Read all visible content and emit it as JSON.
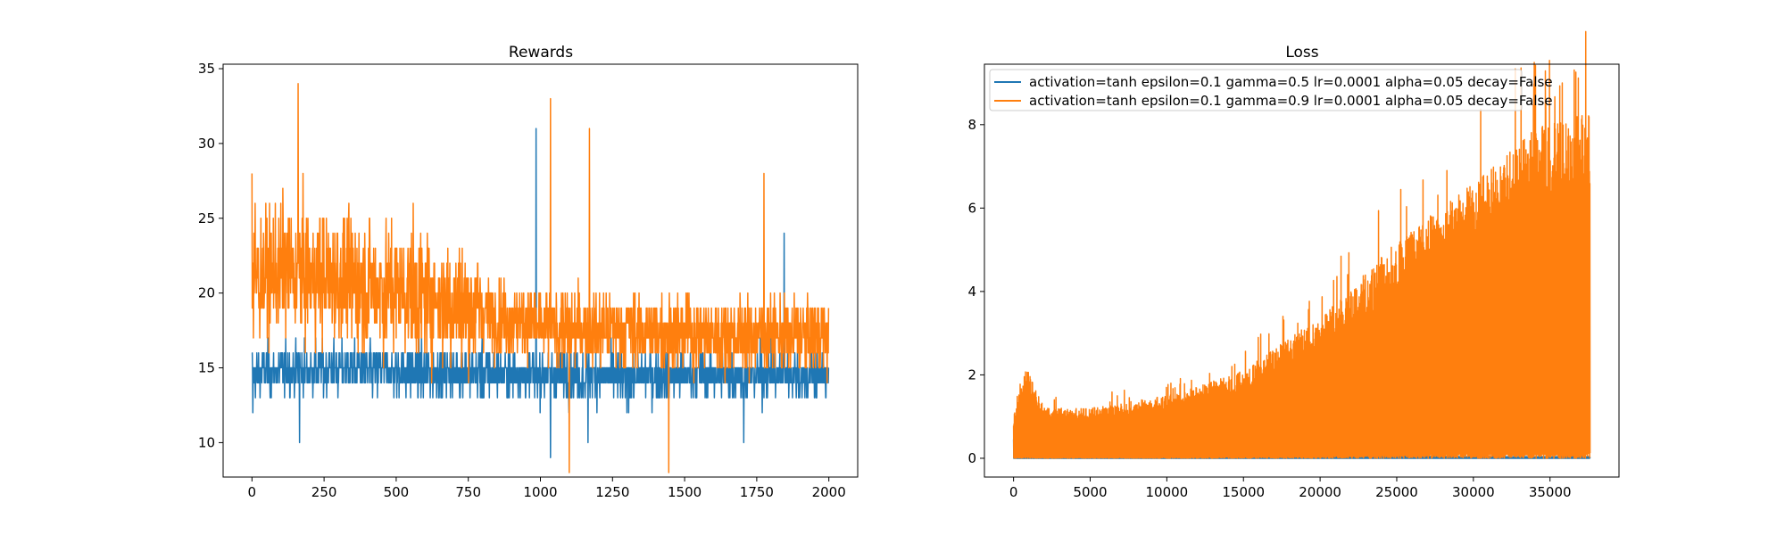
{
  "chart_data": [
    {
      "type": "line",
      "title": "Rewards",
      "xlabel": "",
      "ylabel": "",
      "xlim": [
        -100,
        2100
      ],
      "ylim": [
        7.7,
        35.3
      ],
      "xticks": [
        0,
        250,
        500,
        750,
        1000,
        1250,
        1500,
        1750,
        2000
      ],
      "yticks": [
        10,
        15,
        20,
        25,
        30,
        35
      ],
      "grid": false,
      "legend": "none",
      "series": [
        {
          "color": "#1f77b4",
          "points": 2000,
          "baseline": [
            [
              0,
              14.6
            ],
            [
              100,
              14.8
            ],
            [
              250,
              15.0
            ],
            [
              500,
              14.8
            ],
            [
              750,
              14.7
            ],
            [
              1000,
              14.5
            ],
            [
              1250,
              14.4
            ],
            [
              1500,
              14.5
            ],
            [
              1750,
              14.5
            ],
            [
              2000,
              14.6
            ]
          ],
          "range": [
            10,
            31
          ],
          "spikes": [
            [
              0,
              16
            ],
            [
              3,
              12
            ],
            [
              165,
              10
            ],
            [
              985,
              31
            ],
            [
              1035,
              9
            ],
            [
              1165,
              10
            ],
            [
              1705,
              10
            ],
            [
              1845,
              24
            ],
            [
              1990,
              13
            ]
          ]
        },
        {
          "color": "#ff7f0e",
          "points": 2000,
          "baseline": [
            [
              0,
              21
            ],
            [
              100,
              21.5
            ],
            [
              250,
              21
            ],
            [
              500,
              20.3
            ],
            [
              750,
              19
            ],
            [
              1000,
              17.7
            ],
            [
              1250,
              17.5
            ],
            [
              1500,
              17.3
            ],
            [
              1750,
              17.2
            ],
            [
              2000,
              17.2
            ]
          ],
          "range": [
            8,
            34
          ],
          "spikes": [
            [
              0,
              28
            ],
            [
              5,
              17
            ],
            [
              160,
              34
            ],
            [
              1035,
              33
            ],
            [
              1100,
              8
            ],
            [
              1170,
              31
            ],
            [
              1445,
              8
            ],
            [
              1775,
              28
            ],
            [
              1990,
              17
            ]
          ]
        }
      ]
    },
    {
      "type": "line",
      "title": "Loss",
      "xlabel": "",
      "ylabel": "",
      "xlim": [
        -1900,
        39500
      ],
      "ylim": [
        -0.45,
        9.45
      ],
      "xticks": [
        0,
        5000,
        10000,
        15000,
        20000,
        25000,
        30000,
        35000
      ],
      "yticks": [
        0,
        2,
        4,
        6,
        8
      ],
      "grid": false,
      "legend": "top-left",
      "series": [
        {
          "name": "activation=tanh epsilon=0.1 gamma=0.5 lr=0.0001 alpha=0.05 decay=False",
          "color": "#1f77b4",
          "points": 37600,
          "envelope": [
            [
              0,
              0.5
            ],
            [
              300,
              1.4
            ],
            [
              1000,
              0.8
            ],
            [
              2500,
              0.2
            ],
            [
              5000,
              0.06
            ],
            [
              15000,
              0.05
            ],
            [
              20000,
              0.07
            ],
            [
              30000,
              0.04
            ],
            [
              37600,
              0.04
            ]
          ]
        },
        {
          "name": "activation=tanh epsilon=0.1 gamma=0.9 lr=0.0001 alpha=0.05 decay=False",
          "color": "#ff7f0e",
          "points": 37600,
          "envelope": [
            [
              0,
              1.0
            ],
            [
              800,
              2.2
            ],
            [
              2000,
              1.2
            ],
            [
              5000,
              1.2
            ],
            [
              10000,
              1.5
            ],
            [
              15000,
              2.1
            ],
            [
              20000,
              3.4
            ],
            [
              25000,
              5.2
            ],
            [
              30000,
              6.6
            ],
            [
              34000,
              7.9
            ],
            [
              37600,
              8.3
            ]
          ],
          "peak": [
            [
              35800,
              9.0
            ]
          ]
        }
      ]
    }
  ]
}
